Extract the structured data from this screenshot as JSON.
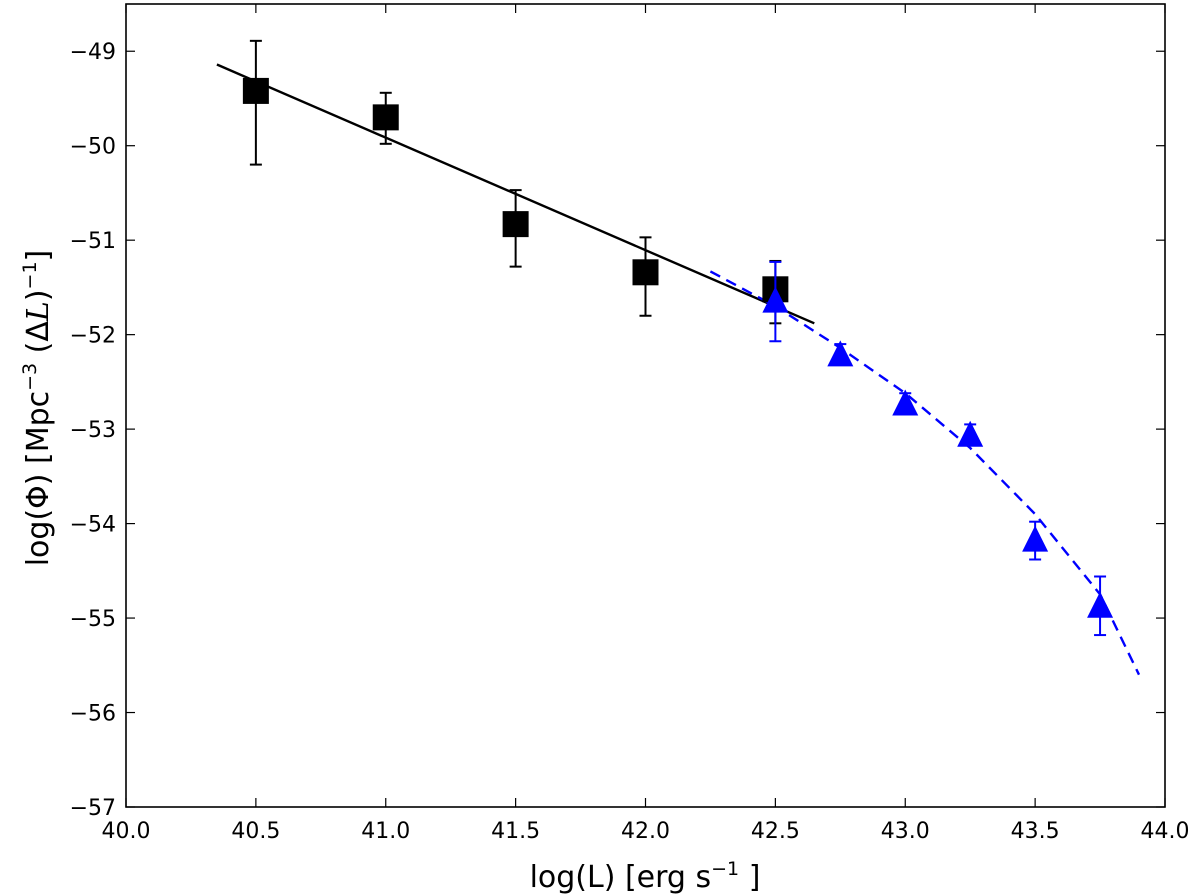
{
  "chart_data": {
    "type": "scatter",
    "xlabel": "log(L) [erg s⁻¹]",
    "xlabel_base": "log(L) [erg s",
    "xlabel_sup": "−1",
    "xlabel_tail": "]",
    "ylabel": "log(Φ) [Mpc⁻³ (ΔL)⁻¹]",
    "ylabel_part1": "log(Φ) [Mpc",
    "ylabel_sup1": "−3",
    "ylabel_part2": " (Δ",
    "ylabel_italic": "L",
    "ylabel_part3": ")",
    "ylabel_sup2": "−1",
    "ylabel_part4": "]",
    "xlim": [
      40.0,
      44.0
    ],
    "ylim": [
      -57,
      -48.5
    ],
    "xticks": [
      "40.0",
      "40.5",
      "41.0",
      "41.5",
      "42.0",
      "42.5",
      "43.0",
      "43.5",
      "44.0"
    ],
    "yticks": [
      "−49",
      "−50",
      "−51",
      "−52",
      "−53",
      "−54",
      "−55",
      "−56",
      "−57"
    ],
    "xtick_values": [
      40.0,
      40.5,
      41.0,
      41.5,
      42.0,
      42.5,
      43.0,
      43.5,
      44.0
    ],
    "ytick_values": [
      -49,
      -50,
      -51,
      -52,
      -53,
      -54,
      -55,
      -56,
      -57
    ],
    "grid": false,
    "series": [
      {
        "marker": "square",
        "color": "#000000",
        "x": [
          40.5,
          41.0,
          41.5,
          42.0,
          42.5
        ],
        "y": [
          -49.42,
          -49.7,
          -50.83,
          -51.34,
          -51.52
        ],
        "err_low": [
          0.78,
          0.28,
          0.45,
          0.46,
          0.36
        ],
        "err_high": [
          0.53,
          0.26,
          0.36,
          0.37,
          0.3
        ]
      },
      {
        "marker": "triangle",
        "color": "#0000ff",
        "x": [
          42.5,
          42.75,
          43.0,
          43.25,
          43.5,
          43.75
        ],
        "y": [
          -51.65,
          -52.22,
          -52.74,
          -53.07,
          -54.18,
          -54.88
        ],
        "err_low": [
          0.42,
          0.08,
          0.08,
          0.09,
          0.2,
          0.3
        ],
        "err_high": [
          0.42,
          0.12,
          0.12,
          0.12,
          0.2,
          0.32
        ]
      }
    ],
    "fits": [
      {
        "style": "solid",
        "color": "#000000",
        "x": [
          40.35,
          42.65
        ],
        "y": [
          -49.14,
          -51.88
        ]
      },
      {
        "style": "dashed",
        "color": "#0000ff",
        "x": [
          42.25,
          42.5,
          42.75,
          43.0,
          43.25,
          43.5,
          43.75,
          43.9
        ],
        "y": [
          -51.33,
          -51.7,
          -52.14,
          -52.62,
          -53.2,
          -53.9,
          -54.75,
          -55.6
        ]
      }
    ]
  }
}
